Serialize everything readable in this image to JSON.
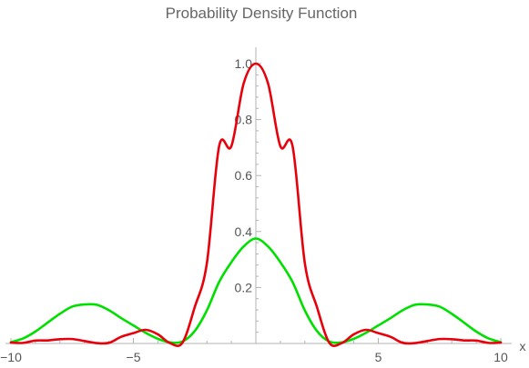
{
  "chart_data": {
    "type": "line",
    "title": "Probability Density Function",
    "xlabel": "x",
    "ylabel": "",
    "xlim": [
      -10,
      10
    ],
    "ylim": [
      0,
      1.0
    ],
    "grid": false,
    "legend": "none",
    "x_ticks": [
      -10,
      -5,
      5,
      10
    ],
    "x_tick_labels": [
      "−10",
      "−5",
      "5",
      "10"
    ],
    "y_ticks": [
      0.2,
      0.4,
      0.6,
      0.8,
      1.0
    ],
    "y_tick_labels": [
      "0.2",
      "0.4",
      "0.6",
      "0.8",
      "1.0"
    ],
    "series": [
      {
        "color": "#e8000b",
        "x": [
          -10,
          -9.5,
          -9,
          -8.5,
          -8,
          -7.5,
          -7,
          -6.5,
          -6,
          -5.5,
          -5,
          -4.5,
          -4,
          -3.5,
          -3,
          -2.5,
          -2,
          -1.5,
          -1,
          -0.5,
          0,
          0.5,
          1,
          1.5,
          2,
          2.5,
          3,
          3.5,
          4,
          4.5,
          5,
          5.5,
          6,
          6.5,
          7,
          7.5,
          8,
          8.5,
          9,
          9.5,
          10
        ],
        "y": [
          0.003,
          0.002,
          0.0104,
          0.0109,
          0.0153,
          0.0158,
          0.0088,
          0.0015,
          0.0022,
          0.0237,
          0.0369,
          0.0487,
          0.0327,
          0.001,
          0.0022,
          0.1285,
          0.2867,
          0.7046,
          0.7049,
          0.9284,
          1.0,
          0.9284,
          0.7049,
          0.7046,
          0.2867,
          0.1285,
          0.0022,
          0.001,
          0.0327,
          0.0487,
          0.0369,
          0.0237,
          0.0022,
          0.0015,
          0.0088,
          0.0158,
          0.0153,
          0.0109,
          0.0104,
          0.002,
          0.003
        ]
      },
      {
        "color": "#00e000",
        "x": [
          -10,
          -9.5,
          -9,
          -8.5,
          -8,
          -7.5,
          -7,
          -6.5,
          -6,
          -5.5,
          -5,
          -4.5,
          -4,
          -3.5,
          -3,
          -2.5,
          -2,
          -1.5,
          -1,
          -0.5,
          0,
          0.5,
          1,
          1.5,
          2,
          2.5,
          3,
          3.5,
          4,
          4.5,
          5,
          5.5,
          6,
          6.5,
          7,
          7.5,
          8,
          8.5,
          9,
          9.5,
          10
        ],
        "y": [
          0.0045,
          0.018,
          0.0426,
          0.0745,
          0.106,
          0.1317,
          0.1395,
          0.1383,
          0.119,
          0.0907,
          0.0644,
          0.0381,
          0.0166,
          0.0038,
          0.0068,
          0.0439,
          0.1181,
          0.2196,
          0.2904,
          0.3462,
          0.375,
          0.3462,
          0.2904,
          0.2196,
          0.1181,
          0.0439,
          0.0068,
          0.0038,
          0.0166,
          0.0381,
          0.0644,
          0.0907,
          0.119,
          0.1383,
          0.1395,
          0.1317,
          0.106,
          0.0745,
          0.0426,
          0.018,
          0.0045
        ]
      }
    ]
  }
}
